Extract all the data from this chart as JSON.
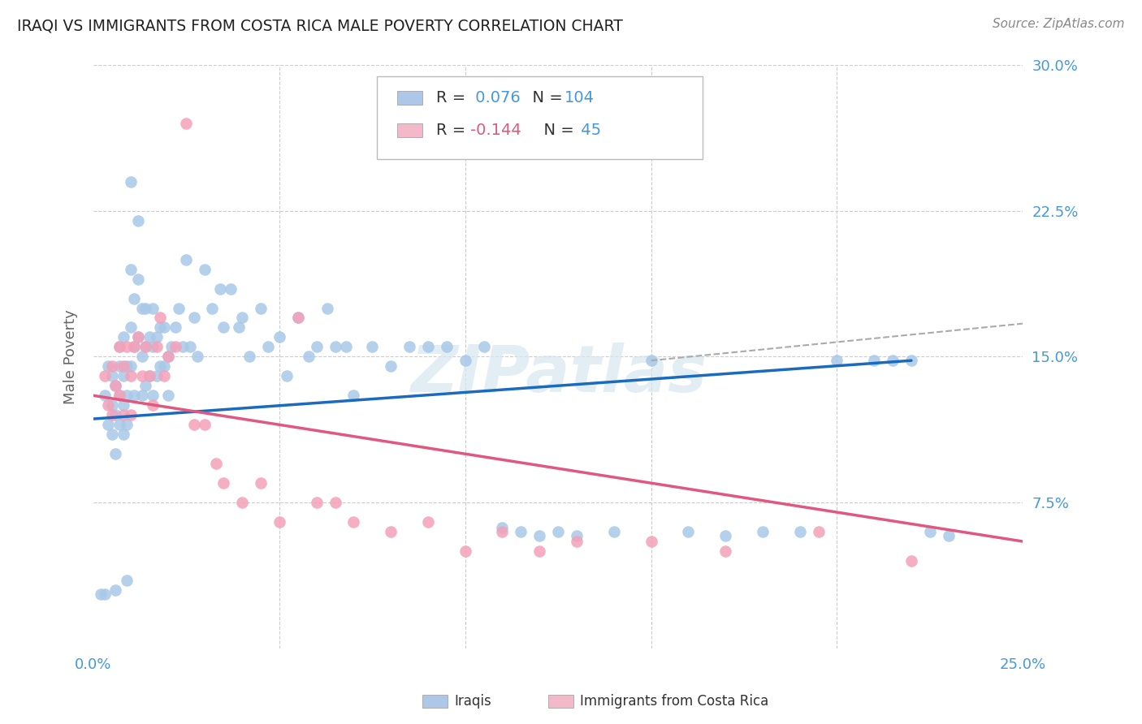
{
  "title": "IRAQI VS IMMIGRANTS FROM COSTA RICA MALE POVERTY CORRELATION CHART",
  "source": "Source: ZipAtlas.com",
  "ylabel": "Male Poverty",
  "xlim": [
    0.0,
    0.25
  ],
  "ylim": [
    0.0,
    0.3
  ],
  "r_iraqi": 0.076,
  "n_iraqi": 104,
  "r_costa_rica": -0.144,
  "n_costa_rica": 45,
  "iraqi_color": "#a8c8e8",
  "costa_rica_color": "#f4a0b8",
  "iraqi_line_color": "#1a6bbf",
  "costa_rica_line_color": "#e05880",
  "dashed_line_color": "#aaaaaa",
  "background_color": "#ffffff",
  "grid_color": "#cccccc",
  "title_color": "#333333",
  "axis_label_color": "#4499dd",
  "iraqi_trend_x": [
    0.0,
    0.22
  ],
  "iraqi_trend_y": [
    0.118,
    0.148
  ],
  "costa_rica_trend_x": [
    0.0,
    0.25
  ],
  "costa_rica_trend_y": [
    0.13,
    0.055
  ],
  "dashed_trend_x": [
    0.15,
    0.25
  ],
  "dashed_trend_y": [
    0.148,
    0.167
  ],
  "watermark": "ZIPatlas",
  "legend_box_color_iraqi": "#aec6e8",
  "legend_box_color_costa_rica": "#f4b8cb",
  "iraqi_x": [
    0.003,
    0.004,
    0.004,
    0.005,
    0.005,
    0.005,
    0.006,
    0.006,
    0.006,
    0.007,
    0.007,
    0.007,
    0.007,
    0.008,
    0.008,
    0.008,
    0.008,
    0.009,
    0.009,
    0.009,
    0.01,
    0.01,
    0.01,
    0.01,
    0.011,
    0.011,
    0.011,
    0.012,
    0.012,
    0.012,
    0.013,
    0.013,
    0.013,
    0.014,
    0.014,
    0.014,
    0.015,
    0.015,
    0.016,
    0.016,
    0.016,
    0.017,
    0.017,
    0.018,
    0.018,
    0.019,
    0.019,
    0.02,
    0.02,
    0.021,
    0.022,
    0.023,
    0.024,
    0.025,
    0.026,
    0.027,
    0.028,
    0.03,
    0.032,
    0.034,
    0.035,
    0.037,
    0.039,
    0.04,
    0.042,
    0.045,
    0.047,
    0.05,
    0.052,
    0.055,
    0.058,
    0.06,
    0.063,
    0.065,
    0.068,
    0.07,
    0.075,
    0.08,
    0.085,
    0.09,
    0.095,
    0.1,
    0.105,
    0.11,
    0.115,
    0.12,
    0.125,
    0.13,
    0.14,
    0.15,
    0.16,
    0.17,
    0.18,
    0.19,
    0.2,
    0.21,
    0.215,
    0.22,
    0.225,
    0.23,
    0.002,
    0.003,
    0.006,
    0.009
  ],
  "iraqi_y": [
    0.13,
    0.115,
    0.145,
    0.125,
    0.14,
    0.11,
    0.135,
    0.12,
    0.1,
    0.145,
    0.13,
    0.115,
    0.155,
    0.14,
    0.125,
    0.16,
    0.11,
    0.145,
    0.13,
    0.115,
    0.24,
    0.195,
    0.165,
    0.145,
    0.18,
    0.155,
    0.13,
    0.22,
    0.19,
    0.16,
    0.175,
    0.15,
    0.13,
    0.175,
    0.155,
    0.135,
    0.16,
    0.14,
    0.175,
    0.155,
    0.13,
    0.16,
    0.14,
    0.165,
    0.145,
    0.165,
    0.145,
    0.15,
    0.13,
    0.155,
    0.165,
    0.175,
    0.155,
    0.2,
    0.155,
    0.17,
    0.15,
    0.195,
    0.175,
    0.185,
    0.165,
    0.185,
    0.165,
    0.17,
    0.15,
    0.175,
    0.155,
    0.16,
    0.14,
    0.17,
    0.15,
    0.155,
    0.175,
    0.155,
    0.155,
    0.13,
    0.155,
    0.145,
    0.155,
    0.155,
    0.155,
    0.148,
    0.155,
    0.062,
    0.06,
    0.058,
    0.06,
    0.058,
    0.06,
    0.148,
    0.06,
    0.058,
    0.06,
    0.06,
    0.148,
    0.148,
    0.148,
    0.148,
    0.06,
    0.058,
    0.028,
    0.028,
    0.03,
    0.035
  ],
  "cr_x": [
    0.003,
    0.004,
    0.005,
    0.005,
    0.006,
    0.007,
    0.007,
    0.008,
    0.008,
    0.009,
    0.01,
    0.01,
    0.011,
    0.012,
    0.013,
    0.014,
    0.015,
    0.016,
    0.017,
    0.018,
    0.019,
    0.02,
    0.022,
    0.025,
    0.027,
    0.03,
    0.033,
    0.035,
    0.04,
    0.045,
    0.05,
    0.055,
    0.06,
    0.065,
    0.07,
    0.08,
    0.09,
    0.1,
    0.11,
    0.12,
    0.13,
    0.15,
    0.17,
    0.195,
    0.22
  ],
  "cr_y": [
    0.14,
    0.125,
    0.145,
    0.12,
    0.135,
    0.155,
    0.13,
    0.145,
    0.12,
    0.155,
    0.14,
    0.12,
    0.155,
    0.16,
    0.14,
    0.155,
    0.14,
    0.125,
    0.155,
    0.17,
    0.14,
    0.15,
    0.155,
    0.27,
    0.115,
    0.115,
    0.095,
    0.085,
    0.075,
    0.085,
    0.065,
    0.17,
    0.075,
    0.075,
    0.065,
    0.06,
    0.065,
    0.05,
    0.06,
    0.05,
    0.055,
    0.055,
    0.05,
    0.06,
    0.045
  ]
}
